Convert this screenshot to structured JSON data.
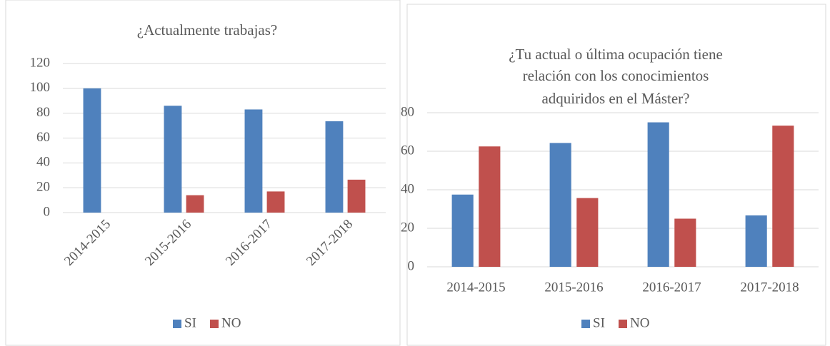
{
  "chart_data": [
    {
      "type": "bar",
      "title": [
        "¿Actualmente trabajas?"
      ],
      "categories": [
        "2014-2015",
        "2015-2016",
        "2016-2017",
        "2017-2018"
      ],
      "series": [
        {
          "name": "SI",
          "color": "#4f81bd",
          "values": [
            100,
            86,
            83,
            73.5
          ]
        },
        {
          "name": "NO",
          "color": "#c0504d",
          "values": [
            0,
            14,
            17,
            26.5
          ]
        }
      ],
      "ylim": [
        0,
        120
      ],
      "yticks": [
        0,
        20,
        40,
        60,
        80,
        100,
        120
      ],
      "grid": true,
      "legend": "bottom",
      "x_label_rotation": -45
    },
    {
      "type": "bar",
      "title": [
        "¿Tu actual o última ocupación tiene",
        "relación con los conocimientos",
        "adquiridos en el Máster?"
      ],
      "categories": [
        "2014-2015",
        "2015-2016",
        "2016-2017",
        "2017-2018"
      ],
      "series": [
        {
          "name": "SI",
          "color": "#4f81bd",
          "values": [
            37.5,
            64.3,
            75,
            26.7
          ]
        },
        {
          "name": "NO",
          "color": "#c0504d",
          "values": [
            62.5,
            35.7,
            25,
            73.3
          ]
        }
      ],
      "ylim": [
        0,
        80
      ],
      "yticks": [
        0,
        20,
        40,
        60,
        80
      ],
      "grid": true,
      "legend": "bottom",
      "x_label_rotation": 0
    }
  ]
}
